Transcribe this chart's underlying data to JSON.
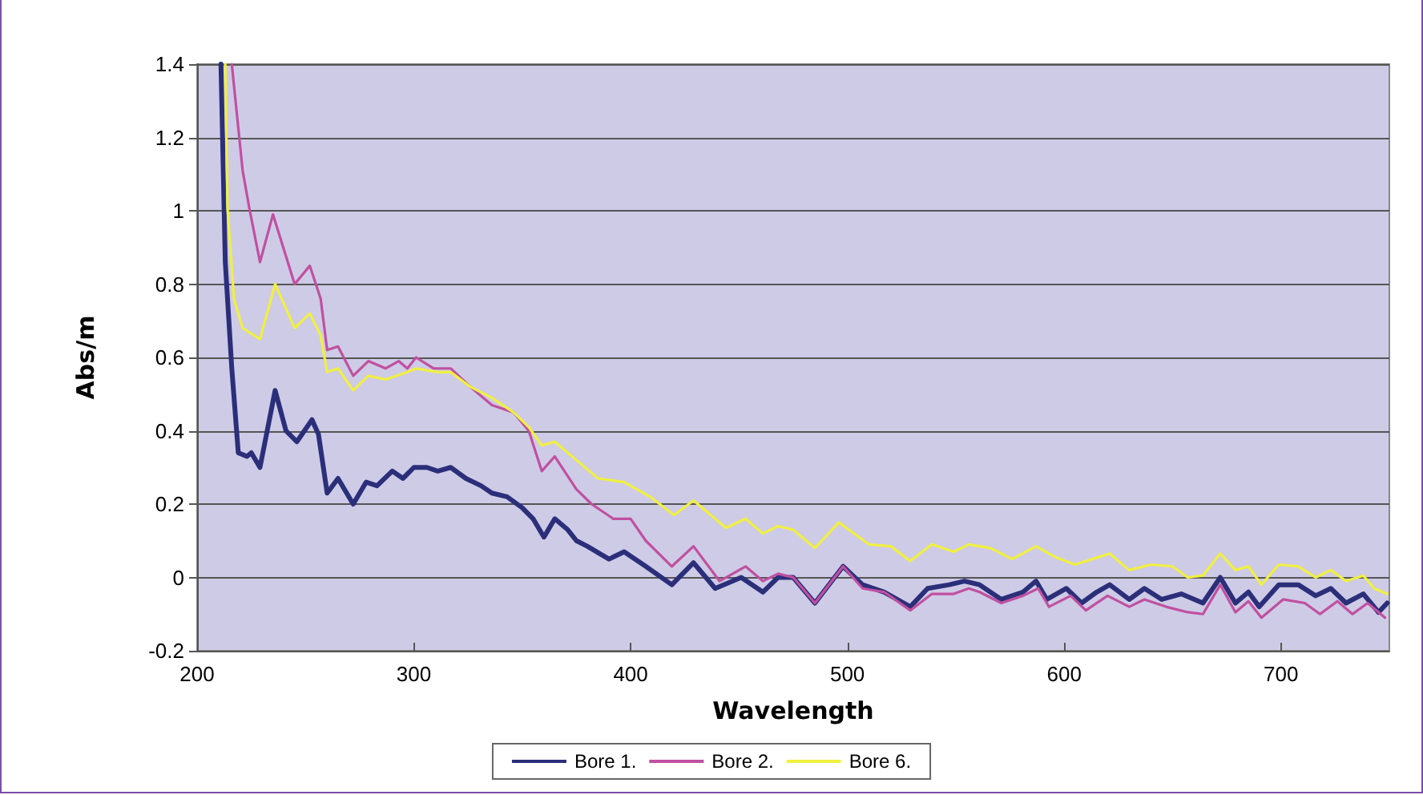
{
  "chart_data": {
    "type": "line",
    "xlabel": "Wavelength",
    "ylabel": "Abs/m",
    "xlim": [
      200,
      750
    ],
    "xticks": [
      200,
      300,
      400,
      500,
      600,
      700
    ],
    "ylim": [
      -0.2,
      1.4
    ],
    "yticks": [
      -0.2,
      0,
      0.2,
      0.4,
      0.6,
      0.8,
      1,
      1.2,
      1.4
    ],
    "grid": "y",
    "legend": "bottom",
    "marker": "none",
    "line_style": "solid",
    "series": [
      {
        "name": "Bore 1.",
        "color": "#2b2f7a",
        "x": [
          211,
          213,
          216,
          219,
          223,
          225,
          229,
          236,
          241,
          246,
          253,
          256,
          260,
          265,
          272,
          278,
          283,
          290,
          295,
          300,
          306,
          311,
          317,
          324,
          331,
          336,
          343,
          350,
          355,
          360,
          365,
          371,
          375,
          380,
          390,
          397,
          407,
          419,
          429,
          439,
          451,
          461,
          468,
          475,
          485,
          498,
          507,
          517,
          529,
          537,
          547,
          554,
          561,
          571,
          581,
          587,
          592,
          601,
          608,
          615,
          621,
          630,
          637,
          645,
          654,
          664,
          672,
          679,
          685,
          690,
          699,
          708,
          716,
          723,
          730,
          738,
          745,
          749
        ],
        "values": [
          1.4,
          0.86,
          0.57,
          0.34,
          0.33,
          0.34,
          0.3,
          0.51,
          0.4,
          0.37,
          0.43,
          0.39,
          0.23,
          0.27,
          0.2,
          0.26,
          0.25,
          0.29,
          0.27,
          0.3,
          0.3,
          0.29,
          0.3,
          0.27,
          0.25,
          0.23,
          0.22,
          0.19,
          0.16,
          0.11,
          0.16,
          0.13,
          0.1,
          0.085,
          0.05,
          0.07,
          0.03,
          -0.02,
          0.04,
          -0.03,
          0.0,
          -0.04,
          0.0,
          0.0,
          -0.07,
          0.03,
          -0.02,
          -0.04,
          -0.08,
          -0.03,
          -0.02,
          -0.01,
          -0.02,
          -0.06,
          -0.04,
          -0.01,
          -0.06,
          -0.03,
          -0.07,
          -0.04,
          -0.02,
          -0.06,
          -0.03,
          -0.06,
          -0.045,
          -0.07,
          0.0,
          -0.07,
          -0.04,
          -0.08,
          -0.02,
          -0.02,
          -0.05,
          -0.03,
          -0.07,
          -0.045,
          -0.095,
          -0.07
        ]
      },
      {
        "name": "Bore 2.",
        "color": "#c050a0",
        "x": [
          216,
          221,
          224,
          229,
          235,
          245,
          252,
          257,
          260,
          265,
          272,
          279,
          287,
          293,
          297,
          301,
          309,
          317,
          326,
          336,
          346,
          353,
          359,
          365,
          375,
          382,
          392,
          400,
          407,
          419,
          429,
          441,
          453,
          461,
          468,
          475,
          485,
          498,
          507,
          517,
          529,
          539,
          549,
          556,
          561,
          571,
          581,
          588,
          593,
          603,
          610,
          620,
          630,
          637,
          647,
          657,
          664,
          672,
          679,
          685,
          691,
          701,
          711,
          718,
          726,
          733,
          740,
          748
        ],
        "values": [
          1.4,
          1.11,
          1.01,
          0.86,
          0.99,
          0.8,
          0.85,
          0.76,
          0.62,
          0.63,
          0.55,
          0.59,
          0.57,
          0.59,
          0.57,
          0.6,
          0.57,
          0.57,
          0.52,
          0.47,
          0.45,
          0.4,
          0.29,
          0.33,
          0.24,
          0.2,
          0.16,
          0.16,
          0.1,
          0.03,
          0.085,
          -0.01,
          0.03,
          -0.01,
          0.01,
          0.0,
          -0.07,
          0.03,
          -0.03,
          -0.04,
          -0.09,
          -0.045,
          -0.045,
          -0.03,
          -0.04,
          -0.07,
          -0.05,
          -0.03,
          -0.08,
          -0.05,
          -0.09,
          -0.05,
          -0.08,
          -0.06,
          -0.08,
          -0.095,
          -0.1,
          -0.02,
          -0.095,
          -0.065,
          -0.11,
          -0.06,
          -0.07,
          -0.1,
          -0.065,
          -0.1,
          -0.07,
          -0.11
        ]
      },
      {
        "name": "Bore 6.",
        "color": "#f0f040",
        "x": [
          213,
          214,
          217,
          221,
          229,
          236,
          245,
          252,
          257,
          260,
          265,
          272,
          279,
          287,
          297,
          301,
          311,
          317,
          326,
          336,
          346,
          353,
          359,
          365,
          375,
          385,
          397,
          409,
          420,
          429,
          444,
          453,
          461,
          468,
          475,
          485,
          496,
          510,
          520,
          529,
          539,
          549,
          556,
          566,
          576,
          587,
          596,
          605,
          613,
          621,
          630,
          640,
          650,
          657,
          664,
          672,
          679,
          685,
          691,
          699,
          708,
          716,
          723,
          730,
          738,
          743,
          749
        ],
        "values": [
          1.4,
          1.01,
          0.76,
          0.68,
          0.65,
          0.8,
          0.68,
          0.72,
          0.66,
          0.56,
          0.57,
          0.51,
          0.55,
          0.54,
          0.56,
          0.57,
          0.56,
          0.56,
          0.52,
          0.49,
          0.45,
          0.41,
          0.36,
          0.37,
          0.32,
          0.27,
          0.26,
          0.22,
          0.17,
          0.21,
          0.135,
          0.16,
          0.12,
          0.14,
          0.13,
          0.08,
          0.15,
          0.09,
          0.085,
          0.045,
          0.09,
          0.07,
          0.09,
          0.08,
          0.05,
          0.085,
          0.055,
          0.035,
          0.05,
          0.065,
          0.02,
          0.035,
          0.03,
          0.0,
          0.005,
          0.065,
          0.02,
          0.03,
          -0.02,
          0.035,
          0.03,
          0.0,
          0.02,
          -0.01,
          0.005,
          -0.03,
          -0.045
        ]
      }
    ]
  }
}
